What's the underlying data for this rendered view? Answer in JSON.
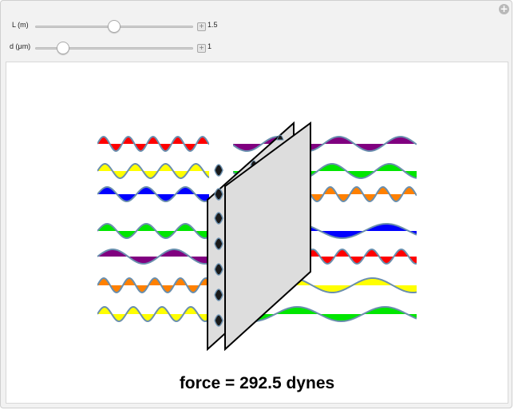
{
  "controls": {
    "L": {
      "label": "L (m)",
      "value": "1.5",
      "position": 0.5
    },
    "d": {
      "label": "d (μm)",
      "value": "1",
      "position": 0.15
    }
  },
  "result": {
    "text": "force = 292.5 dynes"
  },
  "colors": {
    "red": "#ff0000",
    "yellow": "#ffff00",
    "blue": "#0000ff",
    "green": "#00e600",
    "purple": "#800080",
    "orange": "#ff8000",
    "wave_line": "#6a8fae",
    "plate_fill": "#dddddd",
    "plate_stroke": "#000000"
  },
  "waves": {
    "left_colors": [
      "red",
      "yellow",
      "blue",
      "green",
      "purple",
      "orange",
      "yellow"
    ],
    "right_colors": [
      "purple",
      "green",
      "orange",
      "blue",
      "red",
      "yellow",
      "green"
    ]
  }
}
